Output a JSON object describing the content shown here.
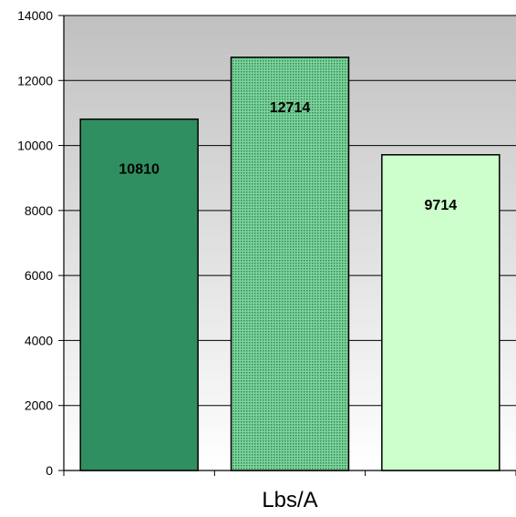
{
  "chart_data": {
    "type": "bar",
    "categories": [
      "",
      "",
      ""
    ],
    "values": [
      10810,
      12714,
      9714
    ],
    "value_labels": [
      "10810",
      "12714",
      "9714"
    ],
    "bar_colors": [
      "#2f8f60",
      "#5fbf80",
      "#ccffcc"
    ],
    "bar_patterns": [
      "solid",
      "dotted",
      "solid"
    ],
    "title": "",
    "xlabel": "Lbs/A",
    "ylabel": "",
    "ylim": [
      0,
      14000
    ],
    "yticks": [
      0,
      2000,
      4000,
      6000,
      8000,
      10000,
      12000,
      14000
    ],
    "ytick_labels": [
      "0",
      "2000",
      "4000",
      "6000",
      "8000",
      "10000",
      "12000",
      "14000"
    ],
    "grid": true,
    "background": "gradient-gray-to-white",
    "legend": "none"
  }
}
